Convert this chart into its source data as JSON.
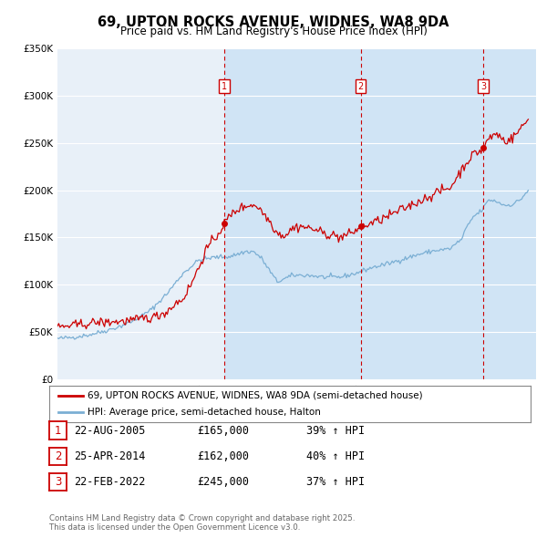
{
  "title": "69, UPTON ROCKS AVENUE, WIDNES, WA8 9DA",
  "subtitle": "Price paid vs. HM Land Registry's House Price Index (HPI)",
  "background_color": "#ffffff",
  "plot_bg_color": "#e8f0f8",
  "highlight_bg_color": "#d0e4f5",
  "grid_color": "#ffffff",
  "ylim": [
    0,
    350000
  ],
  "yticks": [
    0,
    50000,
    100000,
    150000,
    200000,
    250000,
    300000,
    350000
  ],
  "ytick_labels": [
    "£0",
    "£50K",
    "£100K",
    "£150K",
    "£200K",
    "£250K",
    "£300K",
    "£350K"
  ],
  "xlim_start": 1995.0,
  "xlim_end": 2025.5,
  "sale_color": "#cc0000",
  "hpi_color": "#7bafd4",
  "transactions": [
    {
      "num": 1,
      "date": "22-AUG-2005",
      "price": "£165,000",
      "hpi_pct": "39%",
      "year": 2005.64
    },
    {
      "num": 2,
      "date": "25-APR-2014",
      "price": "£162,000",
      "hpi_pct": "40%",
      "year": 2014.32
    },
    {
      "num": 3,
      "date": "22-FEB-2022",
      "price": "£245,000",
      "hpi_pct": "37%",
      "year": 2022.14
    }
  ],
  "transaction_marker_values": [
    165000,
    162000,
    245000
  ],
  "footer": "Contains HM Land Registry data © Crown copyright and database right 2025.\nThis data is licensed under the Open Government Licence v3.0.",
  "legend_label1": "69, UPTON ROCKS AVENUE, WIDNES, WA8 9DA (semi-detached house)",
  "legend_label2": "HPI: Average price, semi-detached house, Halton"
}
